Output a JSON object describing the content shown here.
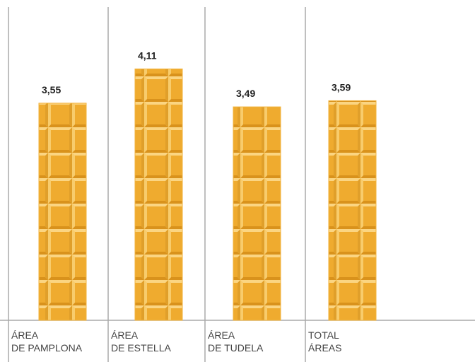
{
  "chart_data": {
    "type": "bar",
    "categories": [
      [
        "ÁREA",
        "DE PAMPLONA"
      ],
      [
        "ÁREA",
        "DE ESTELLA"
      ],
      [
        "ÁREA",
        "DE TUDELA"
      ],
      [
        "TOTAL",
        "ÁREAS"
      ]
    ],
    "values": [
      3.55,
      4.11,
      3.49,
      3.59
    ],
    "value_labels": [
      "3,55",
      "4,11",
      "3,49",
      "3,59"
    ],
    "color": "#f2b33d"
  }
}
